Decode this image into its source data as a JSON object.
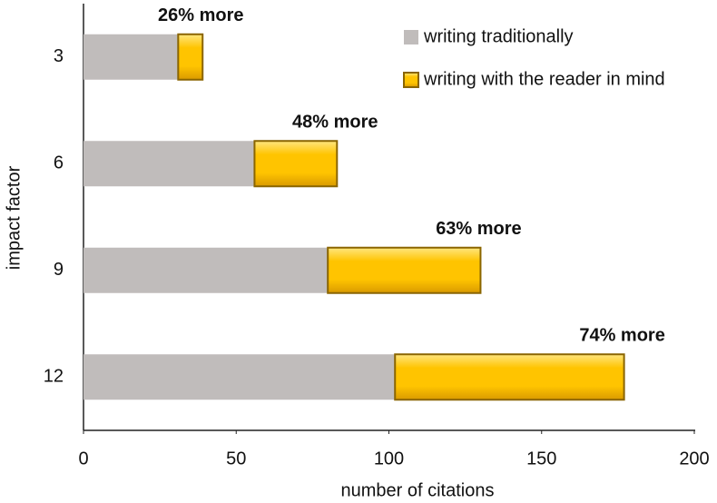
{
  "chart_data": {
    "type": "stacked-barh",
    "categories": [
      "3",
      "6",
      "9",
      "12"
    ],
    "series": [
      {
        "name": "writing traditionally",
        "color": "#c0bcbb",
        "values": [
          31,
          56,
          80,
          102
        ]
      },
      {
        "name": "writing with the reader in mind",
        "color": "#ffc000",
        "values": [
          8,
          27,
          50,
          75
        ]
      }
    ],
    "annotations": [
      "26% more",
      "48% more",
      "63% more",
      "74% more"
    ],
    "xlabel": "number of citations",
    "ylabel": "impact factor",
    "xlim": [
      0,
      200
    ],
    "xticks": [
      0,
      50,
      100,
      150,
      200
    ],
    "grid": false,
    "legend": "top-right"
  }
}
